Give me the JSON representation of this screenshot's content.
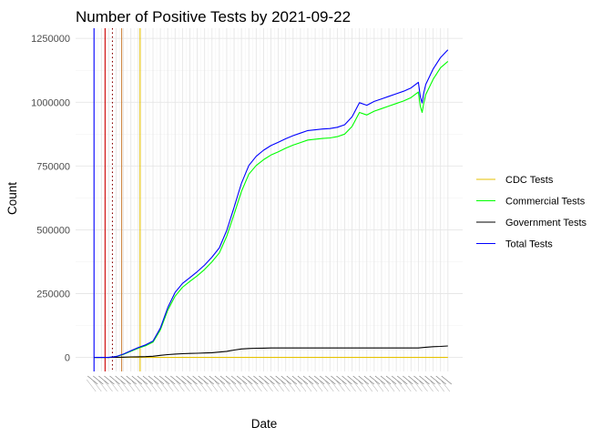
{
  "chart_data": {
    "type": "line",
    "title": "Number of Positive Tests by  2021-09-22",
    "xlabel": "Date",
    "ylabel": "Count",
    "ylim": [
      -55000,
      1290000
    ],
    "xlim": [
      -5,
      100
    ],
    "y_ticks": [
      0,
      250000,
      500000,
      750000,
      1000000,
      1250000
    ],
    "y_tick_labels": [
      "0",
      "250000",
      "500000",
      "750000",
      "1000000",
      "1250000"
    ],
    "x_axis_note": "date tick labels rotated ~60 degrees and heavily overlapping (illegible)",
    "grid": true,
    "legend_position": "right",
    "series": [
      {
        "name": "CDC Tests",
        "color": "#e6c200",
        "x": [
          0,
          10,
          20,
          30,
          40,
          50,
          60,
          70,
          80,
          90,
          96
        ],
        "values": [
          0,
          0,
          0,
          0,
          0,
          0,
          0,
          0,
          0,
          0,
          0
        ]
      },
      {
        "name": "Commercial Tests",
        "color": "#00ff00",
        "x": [
          0,
          2,
          4,
          6,
          8,
          10,
          12,
          14,
          16,
          18,
          20,
          22,
          24,
          26,
          28,
          30,
          32,
          34,
          36,
          38,
          40,
          42,
          44,
          46,
          48,
          50,
          52,
          54,
          56,
          58,
          60,
          62,
          64,
          66,
          68,
          70,
          72,
          74,
          76,
          78,
          80,
          82,
          84,
          86,
          88,
          88.5,
          89,
          89.5,
          90,
          92,
          94,
          96
        ],
        "values": [
          0,
          0,
          0,
          3000,
          12000,
          24000,
          36000,
          46000,
          60000,
          108000,
          185000,
          240000,
          275000,
          298000,
          320000,
          345000,
          375000,
          410000,
          475000,
          560000,
          650000,
          718000,
          752000,
          775000,
          793000,
          806000,
          820000,
          832000,
          842000,
          852000,
          855000,
          858000,
          860000,
          865000,
          875000,
          905000,
          960000,
          950000,
          965000,
          975000,
          985000,
          995000,
          1005000,
          1018000,
          1040000,
          985000,
          960000,
          1000000,
          1030000,
          1090000,
          1135000,
          1160000
        ]
      },
      {
        "name": "Government Tests",
        "color": "#000000",
        "x": [
          0,
          2,
          4,
          6,
          8,
          10,
          12,
          14,
          16,
          18,
          20,
          22,
          24,
          26,
          28,
          30,
          32,
          34,
          36,
          38,
          40,
          42,
          44,
          46,
          48,
          50,
          52,
          54,
          56,
          58,
          60,
          62,
          64,
          66,
          68,
          70,
          72,
          74,
          76,
          78,
          80,
          82,
          84,
          86,
          88,
          90,
          92,
          94,
          96
        ],
        "values": [
          0,
          0,
          0,
          400,
          1000,
          2000,
          2600,
          3200,
          4500,
          8000,
          11000,
          13000,
          14500,
          15500,
          16500,
          17500,
          18500,
          21000,
          24000,
          29000,
          33000,
          35000,
          36000,
          36500,
          37000,
          37000,
          37000,
          37000,
          37000,
          37000,
          37000,
          37000,
          37000,
          37000,
          37000,
          37000,
          37000,
          37000,
          37000,
          37000,
          37000,
          37000,
          37000,
          37000,
          37000,
          40000,
          42000,
          43000,
          45000
        ]
      },
      {
        "name": "Total Tests",
        "color": "#0000ff",
        "x": [
          0,
          2,
          4,
          6,
          8,
          10,
          12,
          14,
          16,
          18,
          20,
          22,
          24,
          26,
          28,
          30,
          32,
          34,
          36,
          38,
          40,
          42,
          44,
          46,
          48,
          50,
          52,
          54,
          56,
          58,
          60,
          62,
          64,
          66,
          68,
          70,
          72,
          74,
          76,
          78,
          80,
          82,
          84,
          86,
          88,
          88.5,
          89,
          89.5,
          90,
          92,
          94,
          96
        ],
        "values": [
          0,
          0,
          0,
          3500,
          13000,
          26000,
          38500,
          49000,
          64000,
          115000,
          195000,
          255000,
          290000,
          313000,
          336000,
          362000,
          393000,
          430000,
          498000,
          588000,
          682000,
          752000,
          788000,
          812000,
          830000,
          843000,
          857000,
          869000,
          879000,
          889000,
          892000,
          895000,
          897000,
          902000,
          912000,
          943000,
          998000,
          988000,
          1003000,
          1013000,
          1023000,
          1033000,
          1043000,
          1056000,
          1078000,
          1022000,
          997000,
          1040000,
          1070000,
          1130000,
          1175000,
          1205000
        ]
      }
    ],
    "reference_lines": [
      {
        "x": 0,
        "color": "#0000ff",
        "dash": "solid"
      },
      {
        "x": 3,
        "color": "#cc0000",
        "dash": "solid"
      },
      {
        "x": 5,
        "color": "#8b0000",
        "dash": "dotted"
      },
      {
        "x": 7.5,
        "color": "#cd853f",
        "dash": "solid"
      },
      {
        "x": 12.5,
        "color": "#e6c200",
        "dash": "solid"
      }
    ]
  }
}
